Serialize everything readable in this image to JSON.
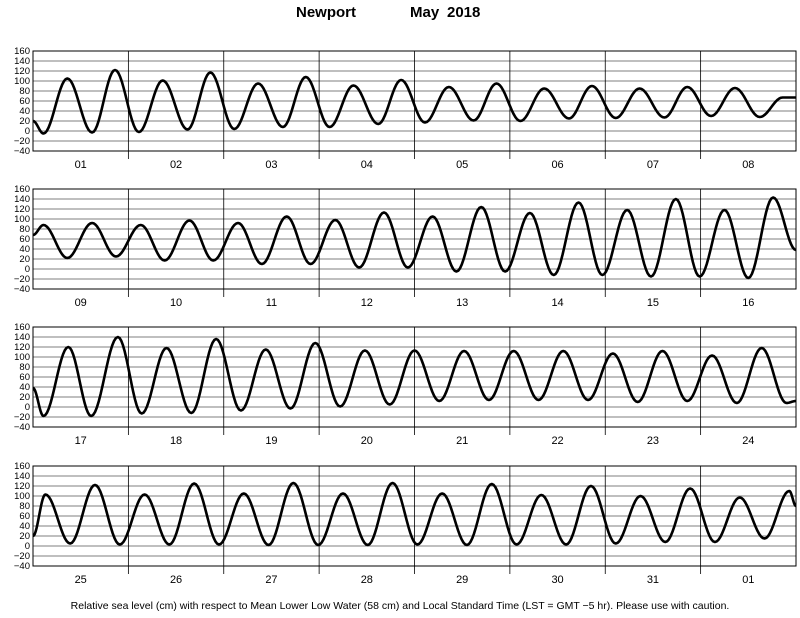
{
  "header": {
    "station": "Newport",
    "month": "May",
    "year": "2018"
  },
  "footer": "Relative sea level (cm) with respect to Mean Lower Low Water (58 cm) and Local Standard Time (LST = GMT −5 hr). Please use with caution.",
  "colors": {
    "line": "#000000",
    "grid": "#000000",
    "background": "#ffffff"
  },
  "chart_data": [
    {
      "type": "line",
      "ylim": [
        -40,
        160
      ],
      "yticks": [
        "160",
        "140",
        "120",
        "100",
        "80",
        "60",
        "40",
        "20",
        "0",
        "−20",
        "−40"
      ],
      "xlim": [
        0,
        8
      ],
      "day_labels": [
        "01",
        "02",
        "03",
        "04",
        "05",
        "06",
        "07",
        "08"
      ],
      "grid": true,
      "x": [
        0,
        0.11,
        0.36,
        0.62,
        0.86,
        1.11,
        1.36,
        1.62,
        1.86,
        2.11,
        2.36,
        2.62,
        2.86,
        3.11,
        3.36,
        3.62,
        3.86,
        4.11,
        4.36,
        4.62,
        4.86,
        5.11,
        5.36,
        5.62,
        5.86,
        6.11,
        6.36,
        6.62,
        6.86,
        7.11,
        7.36,
        7.62,
        7.86,
        8.0
      ],
      "y": [
        20,
        -5,
        105,
        -3,
        122,
        -2,
        101,
        3,
        117,
        4,
        95,
        8,
        108,
        8,
        91,
        14,
        102,
        17,
        88,
        21,
        95,
        20,
        85,
        25,
        90,
        26,
        85,
        27,
        88,
        30,
        86,
        28,
        67,
        67
      ]
    },
    {
      "type": "line",
      "ylim": [
        -40,
        160
      ],
      "yticks": [
        "160",
        "140",
        "120",
        "100",
        "80",
        "60",
        "40",
        "20",
        "0",
        "−20",
        "−40"
      ],
      "xlim": [
        0,
        8
      ],
      "day_labels": [
        "09",
        "10",
        "11",
        "12",
        "13",
        "14",
        "15",
        "16"
      ],
      "grid": true,
      "x": [
        0,
        0.11,
        0.36,
        0.62,
        0.87,
        1.13,
        1.38,
        1.64,
        1.89,
        2.15,
        2.4,
        2.66,
        2.91,
        3.17,
        3.42,
        3.68,
        3.93,
        4.19,
        4.44,
        4.7,
        4.95,
        5.21,
        5.46,
        5.72,
        5.97,
        6.23,
        6.48,
        6.74,
        6.99,
        7.25,
        7.5,
        7.76,
        8.0
      ],
      "y": [
        68,
        88,
        22,
        92,
        25,
        88,
        17,
        97,
        17,
        92,
        10,
        105,
        10,
        98,
        3,
        113,
        3,
        105,
        -5,
        124,
        -5,
        112,
        -12,
        133,
        -12,
        118,
        -15,
        140,
        -15,
        118,
        -18,
        143,
        38
      ]
    },
    {
      "type": "line",
      "ylim": [
        -40,
        160
      ],
      "yticks": [
        "160",
        "140",
        "120",
        "100",
        "80",
        "60",
        "40",
        "20",
        "0",
        "−20",
        "−40"
      ],
      "xlim": [
        0,
        8
      ],
      "day_labels": [
        "17",
        "18",
        "19",
        "20",
        "21",
        "22",
        "23",
        "24"
      ],
      "grid": true,
      "x": [
        0,
        0.11,
        0.37,
        0.61,
        0.89,
        1.14,
        1.4,
        1.66,
        1.92,
        2.18,
        2.44,
        2.7,
        2.96,
        3.22,
        3.48,
        3.74,
        4.0,
        4.26,
        4.52,
        4.78,
        5.04,
        5.3,
        5.56,
        5.82,
        6.08,
        6.34,
        6.6,
        6.86,
        7.12,
        7.38,
        7.64,
        7.9,
        8.0
      ],
      "y": [
        38,
        -18,
        120,
        -18,
        140,
        -13,
        118,
        -12,
        136,
        -7,
        115,
        -3,
        128,
        1,
        113,
        5,
        113,
        12,
        112,
        14,
        112,
        14,
        112,
        14,
        107,
        10,
        112,
        12,
        103,
        8,
        118,
        8,
        12
      ]
    },
    {
      "type": "line",
      "ylim": [
        -40,
        160
      ],
      "yticks": [
        "160",
        "140",
        "120",
        "100",
        "80",
        "60",
        "40",
        "20",
        "0",
        "−20",
        "−40"
      ],
      "xlim": [
        0,
        8
      ],
      "day_labels": [
        "25",
        "26",
        "27",
        "28",
        "29",
        "30",
        "31",
        "01"
      ],
      "grid": true,
      "x": [
        0,
        0.13,
        0.39,
        0.65,
        0.91,
        1.17,
        1.43,
        1.69,
        1.95,
        2.21,
        2.47,
        2.73,
        2.99,
        3.25,
        3.51,
        3.77,
        4.03,
        4.29,
        4.55,
        4.81,
        5.07,
        5.33,
        5.59,
        5.85,
        6.11,
        6.37,
        6.63,
        6.89,
        7.15,
        7.41,
        7.67,
        7.93,
        8.0
      ],
      "y": [
        20,
        103,
        5,
        122,
        3,
        103,
        3,
        125,
        3,
        105,
        2,
        126,
        2,
        105,
        2,
        126,
        3,
        105,
        2,
        124,
        3,
        102,
        3,
        120,
        5,
        100,
        8,
        115,
        8,
        97,
        15,
        110,
        80
      ]
    }
  ]
}
